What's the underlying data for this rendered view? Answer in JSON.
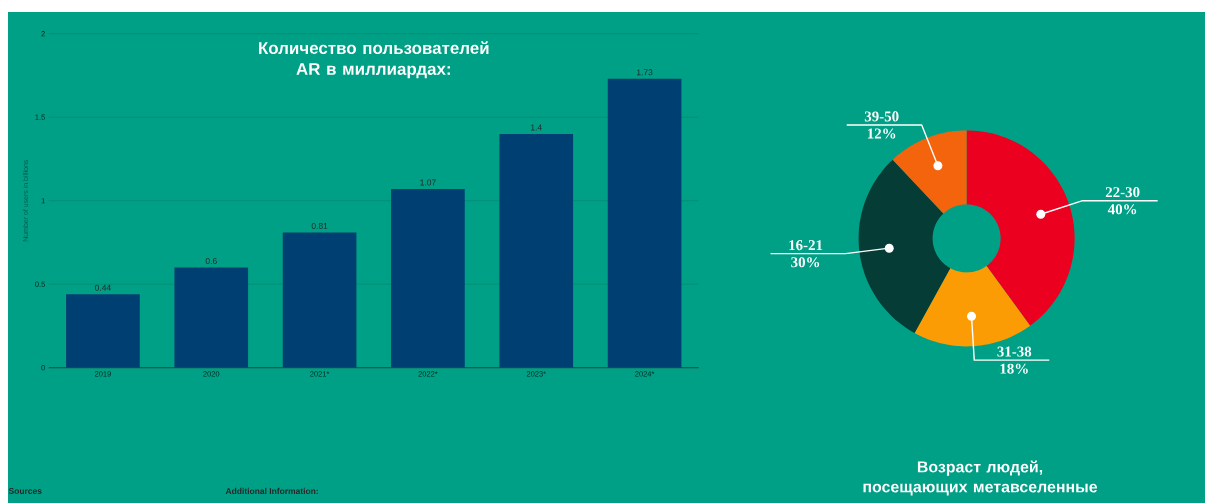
{
  "chart_data": [
    {
      "type": "bar",
      "title": "Количество пользователей AR в миллиардах:",
      "ylabel": "Number of users in billions",
      "categories": [
        "2019",
        "2020",
        "2021*",
        "2022*",
        "2023*",
        "2024*"
      ],
      "values": [
        0.44,
        0.6,
        0.81,
        1.07,
        1.4,
        1.73
      ],
      "color": "#003f72",
      "ylim": [
        0,
        2
      ],
      "yticks": [
        0,
        0.5,
        1,
        1.5,
        2
      ],
      "grid": "y",
      "data_labels": true,
      "annotations": [
        "Sources",
        "Additional Information:"
      ]
    },
    {
      "type": "donut",
      "title": "Возраст людей, посещающих метавселенные",
      "categories": [
        "22-30",
        "31-38",
        "16-21",
        "39-50"
      ],
      "values": [
        40,
        18,
        30,
        12
      ],
      "colors": [
        "#ec0020",
        "#fb9c05",
        "#053c35",
        "#f3640d"
      ],
      "value_labels": [
        "40%",
        "18%",
        "30%",
        "12%"
      ]
    }
  ]
}
